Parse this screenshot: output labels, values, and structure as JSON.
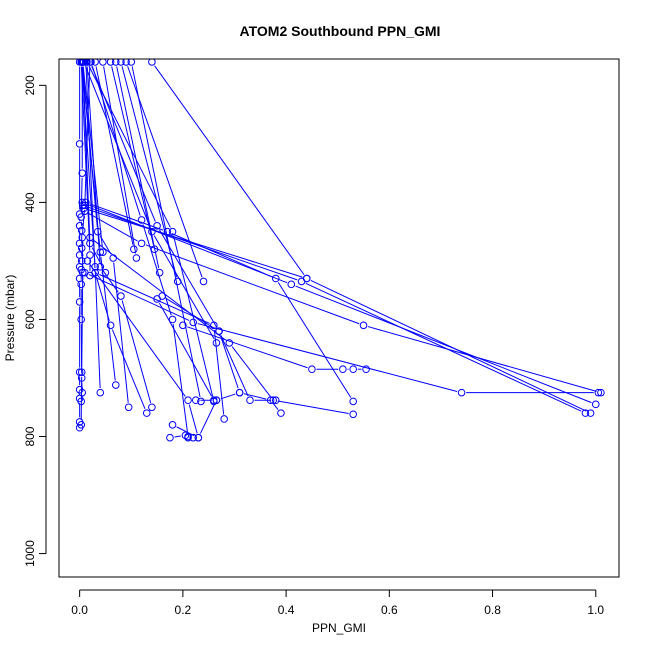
{
  "chart_data": {
    "type": "line",
    "title": "ATOM2 Southbound PPN_GMI",
    "xlabel": "PPN_GMI",
    "ylabel": "Pressure (mbar)",
    "xlim": [
      -0.04,
      1.045
    ],
    "ylim": [
      1040,
      155
    ],
    "y_reversed": true,
    "x_ticks": [
      0.0,
      0.2,
      0.4,
      0.6,
      0.8,
      1.0
    ],
    "x_tick_labels": [
      "0.0",
      "0.2",
      "0.4",
      "0.6",
      "0.8",
      "1.0"
    ],
    "y_ticks": [
      200,
      400,
      600,
      800,
      1000
    ],
    "y_tick_labels": [
      "200",
      "400",
      "600",
      "800",
      "1000"
    ],
    "grid": false,
    "color": "#0000ff",
    "series": [
      {
        "x": [
          0.0,
          0.0,
          0.0,
          0.0,
          0.0,
          0.0,
          0.0,
          0.0,
          0.0,
          0.0,
          0.0,
          0.0,
          0.0,
          0.0
        ],
        "y": [
          160,
          300,
          420,
          440,
          470,
          490,
          510,
          530,
          570,
          690,
          720,
          735,
          775,
          785
        ]
      },
      {
        "x": [
          0.005,
          0.005,
          0.003,
          0.004,
          0.004,
          0.004,
          0.003,
          0.003,
          0.003,
          0.004,
          0.005,
          0.003
        ],
        "y": [
          160,
          350,
          425,
          448,
          478,
          500,
          515,
          540,
          600,
          700,
          725,
          740
        ]
      },
      {
        "x": [
          0.02,
          0.01,
          0.005,
          0.006,
          0.004,
          0.003
        ],
        "y": [
          160,
          405,
          460,
          520,
          690,
          780
        ]
      },
      {
        "x": [
          0.008,
          0.14,
          0.265
        ],
        "y": [
          160,
          450,
          640
        ]
      },
      {
        "x": [
          0.02,
          0.15,
          0.27
        ],
        "y": [
          160,
          440,
          620
        ]
      },
      {
        "x": [
          0.014,
          0.18,
          0.26
        ],
        "y": [
          160,
          450,
          740
        ]
      },
      {
        "x": [
          0.022,
          0.12,
          0.18,
          0.21
        ],
        "y": [
          160,
          430,
          600,
          800
        ]
      },
      {
        "x": [
          0.03,
          0.105
        ],
        "y": [
          160,
          480
        ]
      },
      {
        "x": [
          0.045,
          0.11
        ],
        "y": [
          160,
          495
        ]
      },
      {
        "x": [
          0.06,
          0.145
        ],
        "y": [
          160,
          480
        ]
      },
      {
        "x": [
          0.07,
          0.155
        ],
        "y": [
          160,
          520
        ]
      },
      {
        "x": [
          0.08,
          0.19
        ],
        "y": [
          160,
          535
        ]
      },
      {
        "x": [
          0.09,
          0.24
        ],
        "y": [
          160,
          535
        ]
      },
      {
        "x": [
          0.14,
          0.44
        ],
        "y": [
          160,
          530
        ]
      },
      {
        "x": [
          0.1,
          0.235
        ],
        "y": [
          160,
          740
        ]
      },
      {
        "x": [
          0.005,
          0.035,
          0.065,
          0.095
        ],
        "y": [
          160,
          450,
          495,
          750
        ]
      },
      {
        "x": [
          0.004,
          0.04,
          0.07
        ],
        "y": [
          160,
          485,
          712
        ]
      },
      {
        "x": [
          0.006,
          0.02,
          0.05
        ],
        "y": [
          160,
          470,
          520
        ]
      },
      {
        "x": [
          0.004,
          0.03,
          0.04
        ],
        "y": [
          160,
          510,
          725
        ]
      },
      {
        "x": [
          0.003,
          0.02,
          0.02
        ],
        "y": [
          160,
          490,
          525
        ]
      },
      {
        "x": [
          0.006,
          0.045
        ],
        "y": [
          160,
          485
        ]
      },
      {
        "x": [
          0.012,
          0.03,
          0.06,
          0.13
        ],
        "y": [
          160,
          520,
          610,
          760
        ]
      },
      {
        "x": [
          0.014,
          0.04,
          0.08,
          0.14
        ],
        "y": [
          160,
          510,
          560,
          750
        ]
      },
      {
        "x": [
          0.005,
          0.41,
          1.0
        ],
        "y": [
          400,
          540,
          745
        ]
      },
      {
        "x": [
          0.008,
          0.44,
          0.99
        ],
        "y": [
          410,
          530,
          760
        ]
      },
      {
        "x": [
          0.006,
          0.43,
          0.98
        ],
        "y": [
          405,
          535,
          760
        ]
      },
      {
        "x": [
          0.012,
          0.17,
          0.38,
          0.53
        ],
        "y": [
          400,
          450,
          530,
          740
        ]
      },
      {
        "x": [
          0.01,
          0.12,
          0.55,
          1.01
        ],
        "y": [
          415,
          470,
          610,
          725
        ]
      },
      {
        "x": [
          0.01,
          0.22,
          0.74,
          1.005
        ],
        "y": [
          520,
          605,
          725,
          725
        ]
      },
      {
        "x": [
          0.2,
          0.45,
          0.51,
          0.53,
          0.555
        ],
        "y": [
          610,
          685,
          685,
          685,
          685
        ]
      },
      {
        "x": [
          0.27,
          0.31,
          0.37,
          0.39
        ],
        "y": [
          620,
          725,
          738,
          760
        ]
      },
      {
        "x": [
          0.16,
          0.27,
          0.33,
          0.38
        ],
        "y": [
          560,
          620,
          738,
          738
        ]
      },
      {
        "x": [
          0.15,
          0.26,
          0.265,
          0.31
        ],
        "y": [
          565,
          738,
          738,
          725
        ]
      },
      {
        "x": [
          0.02,
          0.29,
          0.375,
          0.53
        ],
        "y": [
          460,
          640,
          738,
          762
        ]
      },
      {
        "x": [
          0.03,
          0.26,
          0.28
        ],
        "y": [
          520,
          610,
          770
        ]
      },
      {
        "x": [
          0.175,
          0.205,
          0.21,
          0.22
        ],
        "y": [
          802,
          798,
          802,
          802
        ]
      },
      {
        "x": [
          0.18,
          0.23,
          0.265,
          0.225
        ],
        "y": [
          780,
          802,
          738,
          738
        ]
      },
      {
        "x": [
          0.015,
          0.21,
          0.23
        ],
        "y": [
          500,
          738,
          802
        ]
      }
    ]
  }
}
